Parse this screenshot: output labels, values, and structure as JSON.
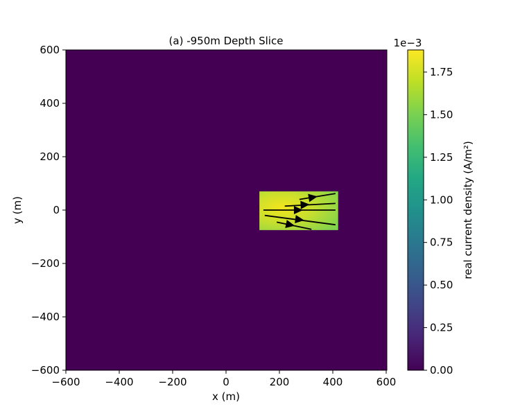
{
  "chart_data": {
    "type": "heatmap",
    "title": "(a) -950m Depth Slice",
    "xlabel": "x (m)",
    "ylabel": "y (m)",
    "xlim": [
      -600,
      600
    ],
    "ylim": [
      -600,
      600
    ],
    "xticks": [
      "−600",
      "−400",
      "−200",
      "0",
      "200",
      "400",
      "600"
    ],
    "yticks": [
      "−600",
      "−400",
      "−200",
      "0",
      "200",
      "400",
      "600"
    ],
    "xtick_values": [
      -600,
      -400,
      -200,
      0,
      200,
      400,
      600
    ],
    "ytick_values": [
      -600,
      -400,
      -200,
      0,
      200,
      400,
      600
    ],
    "background_value": 0.0,
    "region": {
      "x": [
        125,
        420
      ],
      "y": [
        -75,
        70
      ],
      "peak_value": 0.00188,
      "peak_location": [
        200,
        10
      ],
      "edge_value": 0.0013
    },
    "streamlines": [
      {
        "points": [
          [
            275,
            40
          ],
          [
            410,
            62
          ]
        ],
        "arrow_at": [
          325,
          48
        ]
      },
      {
        "points": [
          [
            220,
            15
          ],
          [
            410,
            25
          ]
        ],
        "arrow_at": [
          295,
          20
        ]
      },
      {
        "points": [
          [
            140,
            0
          ],
          [
            410,
            0
          ]
        ],
        "arrow_at": [
          270,
          0
        ]
      },
      {
        "points": [
          [
            145,
            -20
          ],
          [
            410,
            -55
          ]
        ],
        "arrow_at": [
          275,
          -36
        ]
      },
      {
        "points": [
          [
            190,
            -45
          ],
          [
            320,
            -72
          ]
        ],
        "arrow_at": [
          240,
          -55
        ]
      }
    ],
    "colorbar": {
      "label": "real current density (A/m²)",
      "multiplier": "1e−3",
      "ticks": [
        "0.00",
        "0.25",
        "0.50",
        "0.75",
        "1.00",
        "1.25",
        "1.50",
        "1.75"
      ],
      "tick_values": [
        0,
        0.25,
        0.5,
        0.75,
        1.0,
        1.25,
        1.5,
        1.75
      ],
      "range": [
        0,
        1.88
      ],
      "colormap": "viridis"
    },
    "colors": {
      "background": "#440154",
      "streamline": "#000000"
    }
  }
}
